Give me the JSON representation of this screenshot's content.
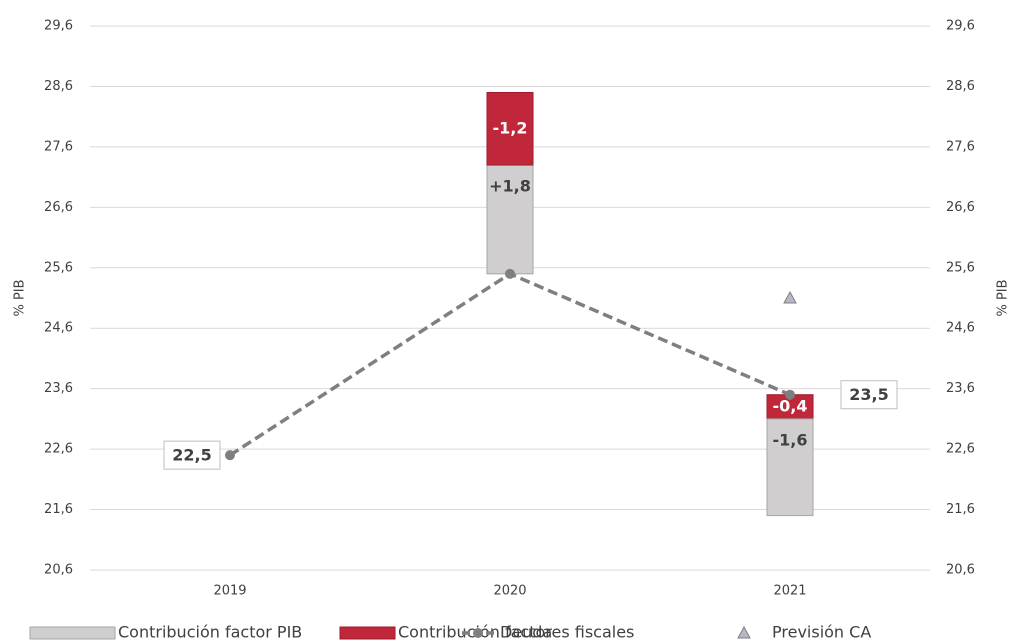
{
  "chart_data": {
    "type": "waterfall-line",
    "y_label": "% PIB",
    "y2_label": "% PIB",
    "categories": [
      "2019",
      "2020",
      "2021"
    ],
    "series": [
      {
        "name": "Contribución factor PIB",
        "color": "#d0cece",
        "values": [
          null,
          1.8,
          -1.6
        ],
        "value_labels": [
          null,
          "+1,8",
          "-1,6"
        ]
      },
      {
        "name": "Contribución factores fiscales",
        "color": "#c0273a",
        "values": [
          null,
          -1.2,
          -0.4
        ],
        "value_labels": [
          null,
          "-1,2",
          "-0,4"
        ]
      },
      {
        "name": "Deuda",
        "color": "#7f7f7f",
        "values": [
          22.5,
          25.5,
          23.5
        ],
        "value_labels": [
          "22,5",
          null,
          "23,5"
        ]
      },
      {
        "name": "Previsión CA",
        "color": "#b4b8c8",
        "values": [
          null,
          null,
          25.1
        ]
      }
    ],
    "ylim": [
      20.6,
      29.6
    ],
    "yticks": [
      {
        "value": 20.6,
        "label": "20,6"
      },
      {
        "value": 21.6,
        "label": "21,6"
      },
      {
        "value": 22.6,
        "label": "22,6"
      },
      {
        "value": 23.6,
        "label": "23,6"
      },
      {
        "value": 24.6,
        "label": "24,6"
      },
      {
        "value": 25.6,
        "label": "25,6"
      },
      {
        "value": 26.6,
        "label": "26,6"
      },
      {
        "value": 27.6,
        "label": "27,6"
      },
      {
        "value": 28.6,
        "label": "28,6"
      },
      {
        "value": 29.6,
        "label": "29,6"
      }
    ],
    "y2lim": [
      20.6,
      29.6
    ],
    "y2ticks": [
      {
        "value": 20.6,
        "label": "20,6"
      },
      {
        "value": 21.6,
        "label": "21,6"
      },
      {
        "value": 22.6,
        "label": "22,6"
      },
      {
        "value": 23.6,
        "label": "23,6"
      },
      {
        "value": 24.6,
        "label": "24,6"
      },
      {
        "value": 25.6,
        "label": "25,6"
      },
      {
        "value": 26.6,
        "label": "26,6"
      },
      {
        "value": 27.6,
        "label": "27,6"
      },
      {
        "value": 28.6,
        "label": "28,6"
      },
      {
        "value": 29.6,
        "label": "29,6"
      }
    ],
    "grid": true,
    "legend": "bottom"
  }
}
